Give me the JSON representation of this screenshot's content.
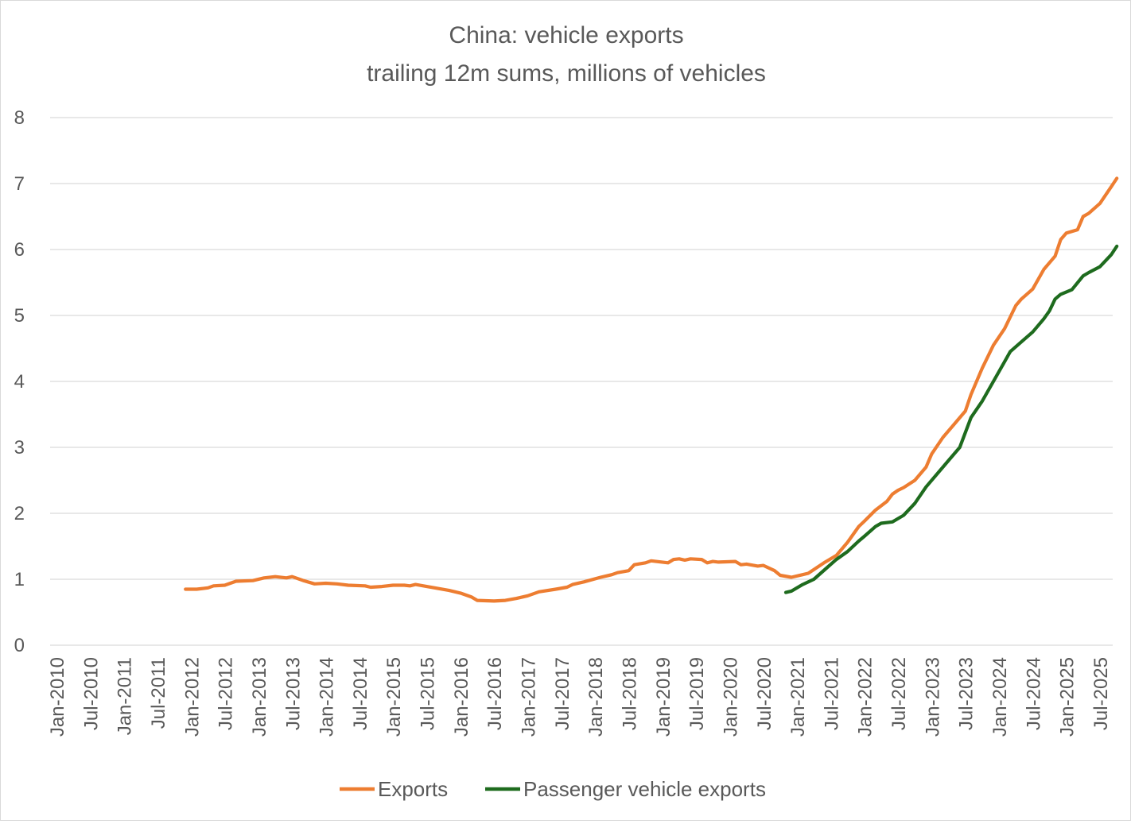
{
  "chart_data": {
    "type": "line",
    "title": "China: vehicle exports",
    "subtitle": "trailing 12m sums, millions of vehicles",
    "xlabel": "",
    "ylabel": "",
    "ylim": [
      0,
      8
    ],
    "yticks": [
      "0",
      "1",
      "2",
      "3",
      "4",
      "5",
      "6",
      "7",
      "8"
    ],
    "x_start": "Jan-2010",
    "x_end": "Jul-2025",
    "xticks": [
      "Jan-2010",
      "Jul-2010",
      "Jan-2011",
      "Jul-2011",
      "Jan-2012",
      "Jul-2012",
      "Jan-2013",
      "Jul-2013",
      "Jan-2014",
      "Jul-2014",
      "Jan-2015",
      "Jul-2015",
      "Jan-2016",
      "Jul-2016",
      "Jan-2017",
      "Jul-2017",
      "Jan-2018",
      "Jul-2018",
      "Jan-2019",
      "Jul-2019",
      "Jan-2020",
      "Jul-2020",
      "Jan-2021",
      "Jul-2021",
      "Jan-2022",
      "Jul-2022",
      "Jan-2023",
      "Jul-2023",
      "Jan-2024",
      "Jul-2024",
      "Jan-2025",
      "Jul-2025"
    ],
    "grid": "horizontal",
    "legend_position": "bottom",
    "series": [
      {
        "name": "Exports",
        "color": "#ED7D31",
        "points": [
          [
            "Dec-2011",
            0.85
          ],
          [
            "Feb-2012",
            0.85
          ],
          [
            "Apr-2012",
            0.87
          ],
          [
            "May-2012",
            0.9
          ],
          [
            "Jul-2012",
            0.91
          ],
          [
            "Sep-2012",
            0.97
          ],
          [
            "Dec-2012",
            0.98
          ],
          [
            "Feb-2013",
            1.02
          ],
          [
            "Apr-2013",
            1.04
          ],
          [
            "Jun-2013",
            1.02
          ],
          [
            "Jul-2013",
            1.04
          ],
          [
            "Sep-2013",
            0.98
          ],
          [
            "Nov-2013",
            0.93
          ],
          [
            "Jan-2014",
            0.94
          ],
          [
            "Mar-2014",
            0.93
          ],
          [
            "May-2014",
            0.91
          ],
          [
            "Aug-2014",
            0.9
          ],
          [
            "Sep-2014",
            0.88
          ],
          [
            "Nov-2014",
            0.89
          ],
          [
            "Jan-2015",
            0.91
          ],
          [
            "Mar-2015",
            0.91
          ],
          [
            "Apr-2015",
            0.9
          ],
          [
            "May-2015",
            0.92
          ],
          [
            "Jul-2015",
            0.89
          ],
          [
            "Sep-2015",
            0.86
          ],
          [
            "Nov-2015",
            0.83
          ],
          [
            "Jan-2016",
            0.79
          ],
          [
            "Mar-2016",
            0.73
          ],
          [
            "Apr-2016",
            0.68
          ],
          [
            "Jul-2016",
            0.67
          ],
          [
            "Sep-2016",
            0.68
          ],
          [
            "Nov-2016",
            0.71
          ],
          [
            "Jan-2017",
            0.75
          ],
          [
            "Mar-2017",
            0.81
          ],
          [
            "Jun-2017",
            0.85
          ],
          [
            "Aug-2017",
            0.88
          ],
          [
            "Sep-2017",
            0.92
          ],
          [
            "Nov-2017",
            0.96
          ],
          [
            "Feb-2018",
            1.03
          ],
          [
            "Apr-2018",
            1.07
          ],
          [
            "May-2018",
            1.1
          ],
          [
            "Jul-2018",
            1.13
          ],
          [
            "Aug-2018",
            1.22
          ],
          [
            "Oct-2018",
            1.25
          ],
          [
            "Nov-2018",
            1.28
          ],
          [
            "Feb-2019",
            1.25
          ],
          [
            "Mar-2019",
            1.3
          ],
          [
            "Apr-2019",
            1.31
          ],
          [
            "May-2019",
            1.29
          ],
          [
            "Jun-2019",
            1.31
          ],
          [
            "Aug-2019",
            1.3
          ],
          [
            "Sep-2019",
            1.25
          ],
          [
            "Oct-2019",
            1.27
          ],
          [
            "Nov-2019",
            1.26
          ],
          [
            "Feb-2020",
            1.27
          ],
          [
            "Mar-2020",
            1.22
          ],
          [
            "Apr-2020",
            1.23
          ],
          [
            "Jun-2020",
            1.2
          ],
          [
            "Jul-2020",
            1.21
          ],
          [
            "Sep-2020",
            1.13
          ],
          [
            "Oct-2020",
            1.06
          ],
          [
            "Dec-2020",
            1.03
          ],
          [
            "Feb-2021",
            1.07
          ],
          [
            "Mar-2021",
            1.09
          ],
          [
            "Jun-2021",
            1.26
          ],
          [
            "Aug-2021",
            1.36
          ],
          [
            "Oct-2021",
            1.56
          ],
          [
            "Dec-2021",
            1.8
          ],
          [
            "Jan-2022",
            1.88
          ],
          [
            "Mar-2022",
            2.05
          ],
          [
            "May-2022",
            2.18
          ],
          [
            "Jun-2022",
            2.29
          ],
          [
            "Jul-2022",
            2.35
          ],
          [
            "Aug-2022",
            2.39
          ],
          [
            "Oct-2022",
            2.5
          ],
          [
            "Dec-2022",
            2.7
          ],
          [
            "Jan-2023",
            2.9
          ],
          [
            "Mar-2023",
            3.15
          ],
          [
            "May-2023",
            3.35
          ],
          [
            "Jul-2023",
            3.55
          ],
          [
            "Aug-2023",
            3.8
          ],
          [
            "Oct-2023",
            4.2
          ],
          [
            "Dec-2023",
            4.55
          ],
          [
            "Feb-2024",
            4.8
          ],
          [
            "Apr-2024",
            5.15
          ],
          [
            "May-2024",
            5.25
          ],
          [
            "Jul-2024",
            5.4
          ],
          [
            "Sep-2024",
            5.7
          ],
          [
            "Nov-2024",
            5.9
          ],
          [
            "Dec-2024",
            6.15
          ],
          [
            "Jan-2025",
            6.25
          ],
          [
            "Mar-2025",
            6.3
          ],
          [
            "Apr-2025",
            6.5
          ],
          [
            "May-2025",
            6.55
          ],
          [
            "Jul-2025",
            6.7
          ],
          [
            "Sep-2025",
            6.95
          ],
          [
            "Oct-2025",
            7.08
          ]
        ]
      },
      {
        "name": "Passenger vehicle exports",
        "color": "#1E6B1E",
        "points": [
          [
            "Nov-2020",
            0.8
          ],
          [
            "Dec-2020",
            0.82
          ],
          [
            "Feb-2021",
            0.92
          ],
          [
            "Apr-2021",
            1.0
          ],
          [
            "Jun-2021",
            1.15
          ],
          [
            "Aug-2021",
            1.3
          ],
          [
            "Oct-2021",
            1.42
          ],
          [
            "Dec-2021",
            1.58
          ],
          [
            "Jan-2022",
            1.65
          ],
          [
            "Mar-2022",
            1.8
          ],
          [
            "Apr-2022",
            1.85
          ],
          [
            "Jun-2022",
            1.87
          ],
          [
            "Aug-2022",
            1.97
          ],
          [
            "Oct-2022",
            2.15
          ],
          [
            "Dec-2022",
            2.4
          ],
          [
            "Mar-2023",
            2.7
          ],
          [
            "Apr-2023",
            2.8
          ],
          [
            "Jun-2023",
            3.0
          ],
          [
            "Aug-2023",
            3.45
          ],
          [
            "Oct-2023",
            3.7
          ],
          [
            "Dec-2023",
            4.0
          ],
          [
            "Feb-2024",
            4.3
          ],
          [
            "Mar-2024",
            4.45
          ],
          [
            "May-2024",
            4.6
          ],
          [
            "Jul-2024",
            4.75
          ],
          [
            "Sep-2024",
            4.95
          ],
          [
            "Oct-2024",
            5.07
          ],
          [
            "Nov-2024",
            5.25
          ],
          [
            "Dec-2024",
            5.32
          ],
          [
            "Feb-2025",
            5.39
          ],
          [
            "Apr-2025",
            5.6
          ],
          [
            "May-2025",
            5.65
          ],
          [
            "Jul-2025",
            5.74
          ],
          [
            "Sep-2025",
            5.92
          ],
          [
            "Oct-2025",
            6.05
          ]
        ]
      }
    ]
  }
}
